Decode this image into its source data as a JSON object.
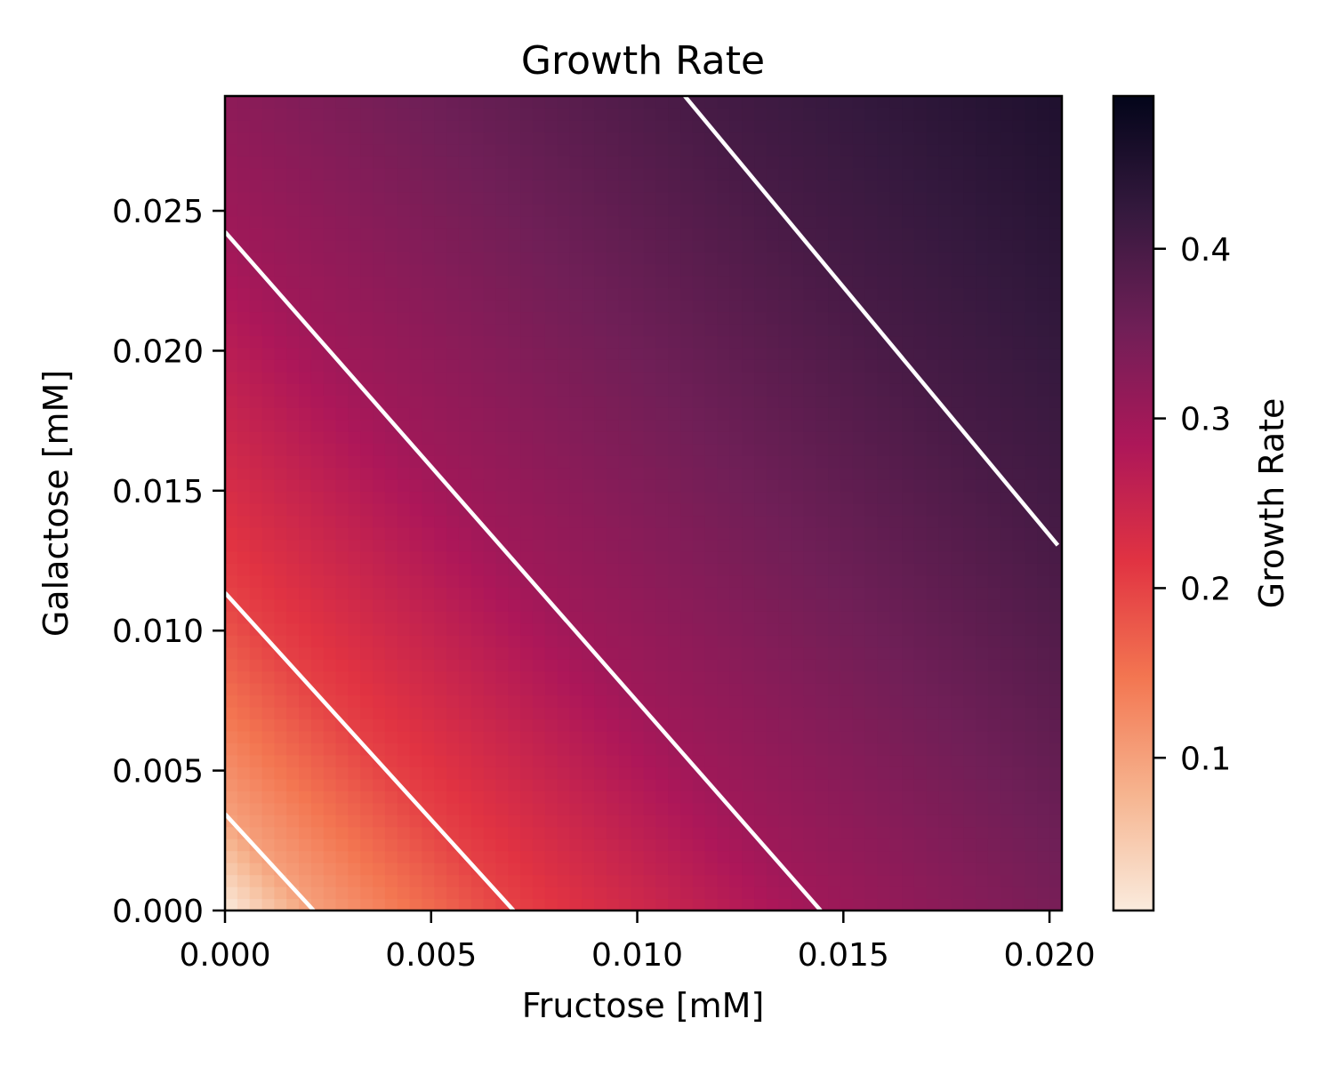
{
  "chart_data": {
    "type": "heatmap",
    "title": "Growth Rate",
    "xlabel": "Fructose [mM]",
    "ylabel": "Galactose [mM]",
    "xlim": [
      0,
      0.0203
    ],
    "ylim": [
      0,
      0.0291
    ],
    "x_ticks": [
      "0.000",
      "0.005",
      "0.010",
      "0.015",
      "0.020"
    ],
    "x_tick_values": [
      0,
      0.005,
      0.01,
      0.015,
      0.02
    ],
    "y_ticks": [
      "0.000",
      "0.005",
      "0.010",
      "0.015",
      "0.020",
      "0.025"
    ],
    "y_tick_values": [
      0,
      0.005,
      0.01,
      0.015,
      0.02,
      0.025
    ],
    "colorbar": {
      "label": "Growth Rate",
      "range": [
        0.01,
        0.49
      ],
      "ticks": [
        "0.1",
        "0.2",
        "0.3",
        "0.4"
      ],
      "tick_values": [
        0.1,
        0.2,
        0.3,
        0.4
      ],
      "colormap": "rocket_r",
      "colors": [
        "#faebdd",
        "#f6b48f",
        "#f37651",
        "#e13342",
        "#ad1759",
        "#701f57",
        "#35193e",
        "#03051a"
      ]
    },
    "contour_levels": [
      0.1,
      0.2,
      0.3,
      0.4
    ],
    "contour_color": "#ffffff",
    "contour_lines": [
      {
        "level": 0.1,
        "points": [
          [
            0,
            0.00345
          ],
          [
            0.00215,
            0
          ]
        ]
      },
      {
        "level": 0.2,
        "points": [
          [
            0,
            0.01135
          ],
          [
            0.007,
            0
          ]
        ]
      },
      {
        "level": 0.3,
        "points": [
          [
            0,
            0.02425
          ],
          [
            0.01445,
            0
          ]
        ]
      },
      {
        "level": 0.4,
        "points": [
          [
            0.01115,
            0.0291
          ],
          [
            0.0202,
            0.01305
          ]
        ]
      }
    ],
    "grid": false
  }
}
